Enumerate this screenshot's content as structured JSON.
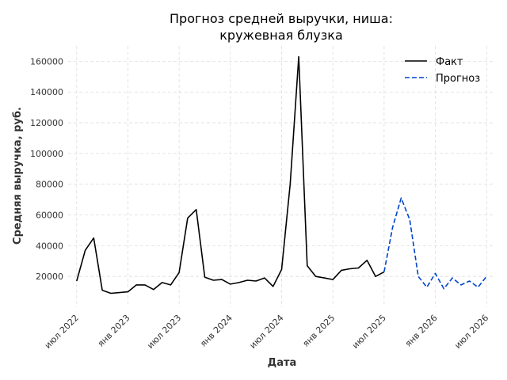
{
  "chart_data": {
    "type": "line",
    "title_lines": [
      "Прогноз средней выручки, ниша:",
      "кружевная блузка"
    ],
    "xlabel": "Дата",
    "ylabel": "Средняя выручка, руб.",
    "ylim": [
      0,
      170000
    ],
    "xlim": [
      "2022-06",
      "2026-08"
    ],
    "grid": true,
    "legend_position": "top-right",
    "y_ticks": [
      20000,
      40000,
      60000,
      80000,
      100000,
      120000,
      140000,
      160000
    ],
    "x_ticks": [
      {
        "date": "2022-07",
        "label": "июл 2022"
      },
      {
        "date": "2023-01",
        "label": "янв 2023"
      },
      {
        "date": "2023-07",
        "label": "июл 2023"
      },
      {
        "date": "2024-01",
        "label": "янв 2024"
      },
      {
        "date": "2024-07",
        "label": "июл 2024"
      },
      {
        "date": "2025-01",
        "label": "янв 2025"
      },
      {
        "date": "2025-07",
        "label": "июл 2025"
      },
      {
        "date": "2026-01",
        "label": "янв 2026"
      },
      {
        "date": "2026-07",
        "label": "июл 2026"
      }
    ],
    "series": [
      {
        "name": "Факт",
        "color": "#000000",
        "style": "solid",
        "x": [
          "2022-07",
          "2022-08",
          "2022-09",
          "2022-10",
          "2022-11",
          "2022-12",
          "2023-01",
          "2023-02",
          "2023-03",
          "2023-04",
          "2023-05",
          "2023-06",
          "2023-07",
          "2023-08",
          "2023-09",
          "2023-10",
          "2023-11",
          "2023-12",
          "2024-01",
          "2024-02",
          "2024-03",
          "2024-04",
          "2024-05",
          "2024-06",
          "2024-07",
          "2024-08",
          "2024-09",
          "2024-10",
          "2024-11",
          "2024-12",
          "2025-01",
          "2025-02",
          "2025-03",
          "2025-04",
          "2025-05",
          "2025-06",
          "2025-07"
        ],
        "values": [
          17000,
          37000,
          45000,
          11000,
          9000,
          9500,
          10000,
          14500,
          14500,
          11500,
          16000,
          14500,
          22500,
          58000,
          63500,
          19500,
          17500,
          18000,
          15000,
          16000,
          17500,
          17000,
          19000,
          13500,
          24500,
          80000,
          163000,
          27000,
          20000,
          19000,
          18000,
          24000,
          25000,
          25500,
          30500,
          20000,
          23000
        ]
      },
      {
        "name": "Прогноз",
        "color": "#0044cc",
        "style": "dashed",
        "x": [
          "2025-07",
          "2025-08",
          "2025-09",
          "2025-10",
          "2025-11",
          "2025-12",
          "2026-01",
          "2026-02",
          "2026-03",
          "2026-04",
          "2026-05",
          "2026-06",
          "2026-07"
        ],
        "values": [
          23000,
          52000,
          71000,
          57000,
          20000,
          13000,
          22000,
          12000,
          19000,
          14500,
          17000,
          13000,
          20000
        ]
      }
    ]
  }
}
